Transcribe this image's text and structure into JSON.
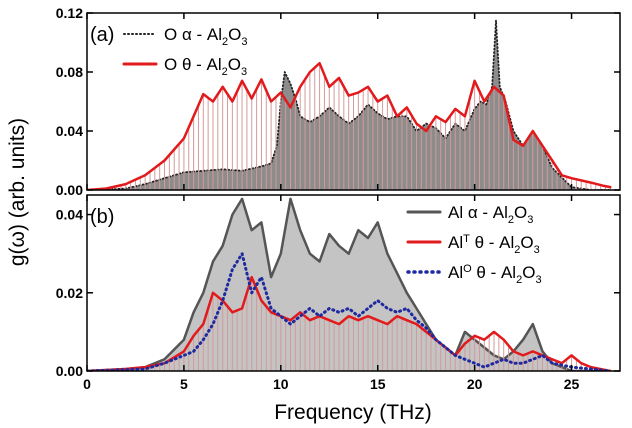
{
  "chart_data": [
    {
      "panel_label": "(a)",
      "type": "line",
      "ylim": [
        0,
        0.12
      ],
      "yticks": [
        "0.00",
        "0.04",
        "0.08",
        "0.12"
      ],
      "series": [
        {
          "name": "O α - Al2O3",
          "legend": {
            "main": "O α - Al",
            "sub": [
              "2",
              "3"
            ]
          },
          "style": "dotted-black-filled-grey",
          "color": "#222222",
          "fill": "#8c8c8c",
          "x": [
            0,
            2,
            3,
            4,
            5,
            6,
            7,
            8,
            9,
            9.5,
            9.8,
            10.0,
            10.2,
            10.5,
            10.8,
            11,
            11.5,
            12,
            12.5,
            13,
            13.5,
            14,
            14.5,
            15,
            15.5,
            16,
            16.5,
            17,
            17.5,
            18,
            18.5,
            19,
            19.5,
            20,
            20.3,
            20.6,
            20.9,
            21.1,
            21.3,
            21.6,
            22,
            22.5,
            23,
            23.5,
            24,
            25,
            26,
            27
          ],
          "y": [
            0,
            0.001,
            0.004,
            0.008,
            0.012,
            0.013,
            0.014,
            0.013,
            0.016,
            0.018,
            0.03,
            0.06,
            0.08,
            0.072,
            0.06,
            0.05,
            0.046,
            0.05,
            0.056,
            0.05,
            0.045,
            0.05,
            0.058,
            0.052,
            0.048,
            0.05,
            0.05,
            0.04,
            0.045,
            0.042,
            0.035,
            0.045,
            0.04,
            0.055,
            0.06,
            0.058,
            0.07,
            0.115,
            0.07,
            0.06,
            0.04,
            0.03,
            0.04,
            0.03,
            0.015,
            0.002,
            0,
            0
          ]
        },
        {
          "name": "O θ - Al2O3",
          "legend": {
            "main": "O θ - Al",
            "sub": [
              "2",
              "3"
            ]
          },
          "style": "solid-red-hatched",
          "color": "#e31a1c",
          "fill": "#d49a9a",
          "x": [
            0,
            1,
            2,
            3,
            4,
            5,
            5.5,
            6,
            6.5,
            7,
            7.5,
            8,
            8.5,
            9,
            9.5,
            10,
            10.5,
            11,
            11.5,
            12,
            12.5,
            13,
            13.5,
            14,
            14.5,
            15,
            15.5,
            16,
            16.5,
            17,
            17.5,
            18,
            18.5,
            19,
            19.5,
            20,
            20.5,
            21,
            21.5,
            22,
            22.5,
            23,
            23.5,
            24,
            24.5,
            25,
            26,
            26.6,
            27
          ],
          "y": [
            0,
            0.001,
            0.004,
            0.01,
            0.02,
            0.035,
            0.05,
            0.065,
            0.06,
            0.07,
            0.06,
            0.074,
            0.062,
            0.075,
            0.06,
            0.066,
            0.056,
            0.07,
            0.08,
            0.086,
            0.07,
            0.076,
            0.064,
            0.066,
            0.07,
            0.06,
            0.064,
            0.05,
            0.056,
            0.045,
            0.04,
            0.05,
            0.046,
            0.055,
            0.05,
            0.074,
            0.06,
            0.07,
            0.064,
            0.034,
            0.03,
            0.04,
            0.03,
            0.02,
            0.01,
            0.008,
            0.005,
            0.003,
            0.002
          ]
        }
      ]
    },
    {
      "panel_label": "(b)",
      "type": "line",
      "ylim": [
        0,
        0.045
      ],
      "yticks": [
        "0.00",
        "0.02",
        "0.04"
      ],
      "series": [
        {
          "name": "Al α - Al2O3",
          "legend": {
            "main": "Al α - Al",
            "sub": [
              "2",
              "3"
            ]
          },
          "style": "solid-darkgrey-filled-lightgrey",
          "color": "#555555",
          "fill": "#c4c4c4",
          "x": [
            0,
            2,
            3,
            4,
            5,
            5.5,
            6,
            6.5,
            7,
            7.5,
            8,
            8.5,
            9,
            9.5,
            10,
            10.5,
            11,
            11.5,
            12,
            12.5,
            13,
            13.5,
            14,
            14.5,
            15,
            15.5,
            16,
            16.5,
            17,
            17.5,
            18,
            18.5,
            19,
            19.5,
            20,
            20.5,
            21,
            21.5,
            22,
            22.5,
            23,
            23.5,
            24,
            25,
            27
          ],
          "y": [
            0,
            0.0005,
            0.001,
            0.003,
            0.008,
            0.015,
            0.02,
            0.028,
            0.032,
            0.04,
            0.044,
            0.036,
            0.038,
            0.024,
            0.03,
            0.044,
            0.036,
            0.03,
            0.028,
            0.035,
            0.032,
            0.03,
            0.036,
            0.034,
            0.038,
            0.03,
            0.025,
            0.02,
            0.016,
            0.012,
            0.008,
            0.006,
            0.004,
            0.01,
            0.008,
            0.006,
            0.004,
            0.003,
            0.005,
            0.008,
            0.012,
            0.005,
            0.002,
            0,
            0
          ]
        },
        {
          "name": "AlT θ - Al2O3",
          "legend": {
            "main": "Al",
            "sup": "T",
            "rest": " θ - Al",
            "sub": [
              "2",
              "3"
            ]
          },
          "style": "solid-red-hatched",
          "color": "#e31a1c",
          "fill": "#d49a9a",
          "x": [
            0,
            2,
            3,
            4,
            5,
            5.5,
            6,
            6.5,
            7,
            7.5,
            8,
            8.5,
            9,
            9.5,
            10,
            10.5,
            11,
            11.5,
            12,
            12.5,
            13,
            13.5,
            14,
            14.5,
            15,
            15.5,
            16,
            16.5,
            17,
            17.5,
            18,
            18.5,
            19,
            19.5,
            20,
            20.5,
            21,
            21.5,
            22,
            22.5,
            23,
            23.5,
            24,
            24.5,
            25,
            25.5,
            26,
            27
          ],
          "y": [
            0,
            0.0005,
            0.001,
            0.002,
            0.005,
            0.009,
            0.012,
            0.02,
            0.018,
            0.015,
            0.016,
            0.024,
            0.018,
            0.015,
            0.014,
            0.013,
            0.015,
            0.013,
            0.014,
            0.013,
            0.012,
            0.014,
            0.013,
            0.014,
            0.013,
            0.012,
            0.014,
            0.013,
            0.012,
            0.01,
            0.008,
            0.006,
            0.004,
            0.007,
            0.009,
            0.008,
            0.01,
            0.008,
            0.005,
            0.004,
            0.005,
            0.004,
            0.003,
            0.002,
            0.004,
            0.002,
            0.001,
            0
          ]
        },
        {
          "name": "AlO θ - Al2O3",
          "legend": {
            "main": "Al",
            "sup": "O",
            "rest": " θ - Al",
            "sub": [
              "2",
              "3"
            ]
          },
          "style": "dotted-navy",
          "color": "#1f2aa0",
          "x": [
            0,
            3,
            4,
            5,
            5.5,
            6,
            6.5,
            7,
            7.5,
            8,
            8.5,
            9,
            9.5,
            10,
            10.5,
            11,
            11.5,
            12,
            12.5,
            13,
            13.5,
            14,
            14.5,
            15,
            15.5,
            16,
            16.5,
            17,
            17.5,
            18,
            18.5,
            19,
            19.5,
            20,
            20.5,
            21,
            21.5,
            22,
            22.5,
            23,
            23.5,
            24,
            25,
            27
          ],
          "y": [
            0,
            0.0005,
            0.002,
            0.004,
            0.005,
            0.008,
            0.012,
            0.018,
            0.026,
            0.03,
            0.02,
            0.024,
            0.016,
            0.014,
            0.012,
            0.014,
            0.016,
            0.014,
            0.016,
            0.015,
            0.016,
            0.014,
            0.016,
            0.018,
            0.016,
            0.015,
            0.016,
            0.013,
            0.011,
            0.008,
            0.006,
            0.004,
            0.003,
            0.002,
            0.001,
            0.002,
            0.003,
            0.002,
            0.002,
            0.003,
            0.004,
            0.002,
            0.001,
            0
          ]
        }
      ]
    }
  ],
  "axes": {
    "xlabel": "Frequency (THz)",
    "ylabel": "g(ω) (arb. units)",
    "xlim": [
      0,
      27.5
    ],
    "xticks": [
      "0",
      "5",
      "10",
      "15",
      "20",
      "25"
    ]
  }
}
